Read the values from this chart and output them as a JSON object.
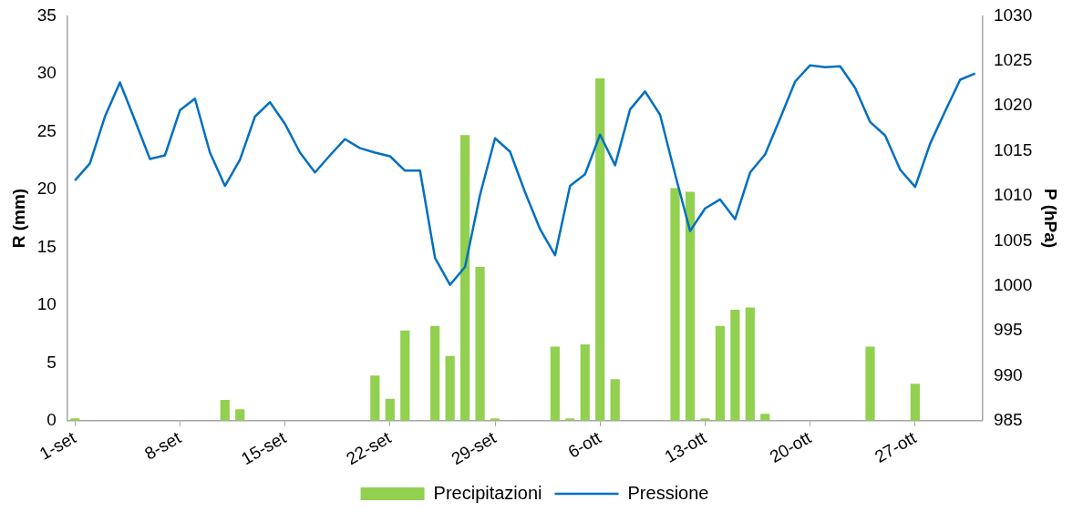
{
  "chart_data": {
    "type": "bar",
    "ylabel": "R (mm)",
    "y2label": "P (hPa)",
    "categories": [
      "1-set",
      null,
      null,
      null,
      null,
      null,
      null,
      "8-set",
      null,
      null,
      null,
      null,
      null,
      null,
      "15-set",
      null,
      null,
      null,
      null,
      null,
      null,
      "22-set",
      null,
      null,
      null,
      null,
      null,
      null,
      "29-set",
      null,
      null,
      null,
      null,
      null,
      null,
      "6-ott",
      null,
      null,
      null,
      null,
      null,
      null,
      "13-ott",
      null,
      null,
      null,
      null,
      null,
      null,
      "20-ott",
      null,
      null,
      null,
      null,
      null,
      null,
      "27-ott",
      null,
      null,
      null,
      null
    ],
    "series": [
      {
        "name": "Precipitazioni",
        "color": "#92d050",
        "values": [
          0.2,
          0,
          0,
          0,
          0,
          0,
          0,
          0,
          0,
          0,
          1.8,
          1.0,
          0,
          0,
          0,
          0,
          0,
          0,
          0,
          0,
          3.9,
          1.9,
          7.8,
          0,
          8.2,
          5.6,
          24.7,
          13.3,
          0.2,
          0,
          0,
          0,
          6.4,
          0.2,
          6.6,
          29.6,
          3.6,
          0,
          0,
          0,
          20.1,
          19.8,
          0.2,
          8.2,
          9.6,
          9.8,
          0.6,
          0,
          0,
          0,
          0,
          0,
          0,
          6.4,
          0,
          0,
          3.2,
          0,
          0,
          0,
          0
        ]
      },
      {
        "name": "Pressione",
        "type": "line",
        "axis": "y2",
        "color": "#0070c0",
        "marker": "none",
        "values": [
          1011.7,
          1013.6,
          1018.8,
          1022.6,
          1018.4,
          1014.1,
          1014.5,
          1019.5,
          1020.8,
          1014.8,
          1011.1,
          1014.0,
          1018.8,
          1020.4,
          1018.0,
          1014.8,
          1012.6,
          1014.5,
          1016.3,
          1015.3,
          1014.8,
          1014.4,
          1012.8,
          1012.8,
          1003.1,
          1000.1,
          1002.1,
          1010.1,
          1016.4,
          1014.9,
          1010.4,
          1006.3,
          1003.4,
          1011.1,
          1012.4,
          1016.8,
          1013.4,
          1019.6,
          1021.6,
          1019.0,
          1012.4,
          1006.1,
          1008.6,
          1009.6,
          1007.4,
          1012.6,
          1014.6,
          1018.6,
          1022.7,
          1024.5,
          1024.3,
          1024.4,
          1022.0,
          1018.2,
          1016.7,
          1012.9,
          1011.0,
          1015.8,
          1019.4,
          1022.9,
          1023.6
        ]
      }
    ],
    "ylim": [
      0,
      35
    ],
    "yticks": [
      0,
      5,
      10,
      15,
      20,
      25,
      30,
      35
    ],
    "y2lim": [
      985,
      1030
    ],
    "y2ticks": [
      985,
      990,
      995,
      1000,
      1005,
      1010,
      1015,
      1020,
      1025,
      1030
    ],
    "grid": false,
    "legend": "bottom"
  }
}
